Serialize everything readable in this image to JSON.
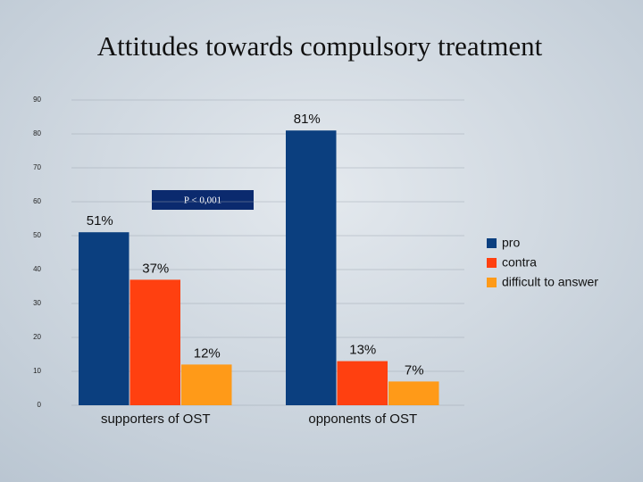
{
  "chart_data": {
    "type": "bar",
    "title": "Attitudes towards compulsory treatment",
    "annotation": "P < 0,001",
    "categories": [
      "supporters of OST",
      "opponents of OST"
    ],
    "series": [
      {
        "name": "pro",
        "color": "#0b3f7f",
        "values": [
          51,
          81
        ],
        "value_labels": [
          "51%",
          "81%"
        ]
      },
      {
        "name": "contra",
        "color": "#ff4010",
        "values": [
          37,
          13
        ],
        "value_labels": [
          "37%",
          "13%"
        ]
      },
      {
        "name": "difficult to answer",
        "color": "#ff9a18",
        "values": [
          12,
          7
        ],
        "value_labels": [
          "12%",
          "7%"
        ]
      }
    ],
    "ylim": [
      0,
      90
    ],
    "yticks": [
      0,
      10,
      20,
      30,
      40,
      50,
      60,
      70,
      80,
      90
    ],
    "grid": true,
    "legend": "right"
  }
}
